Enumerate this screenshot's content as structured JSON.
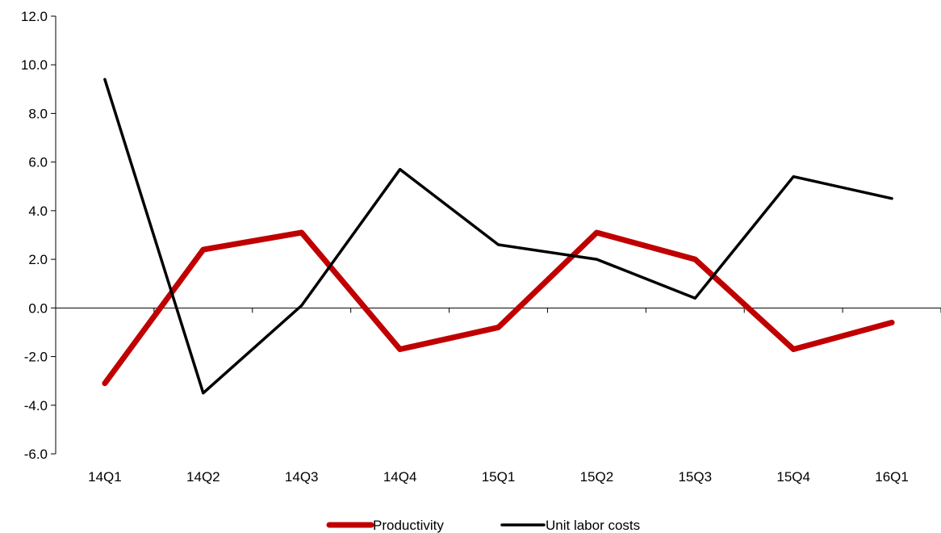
{
  "chart_data": {
    "type": "line",
    "title": "",
    "xlabel": "",
    "ylabel": "",
    "categories": [
      "14Q1",
      "14Q2",
      "14Q3",
      "14Q4",
      "15Q1",
      "15Q2",
      "15Q3",
      "15Q4",
      "16Q1"
    ],
    "ylim": [
      -6.0,
      12.0
    ],
    "y_ticks": [
      "-6.0",
      "-4.0",
      "-2.0",
      "0.0",
      "2.0",
      "4.0",
      "6.0",
      "8.0",
      "10.0",
      "12.0"
    ],
    "y_tick_values": [
      -6,
      -4,
      -2,
      0,
      2,
      4,
      6,
      8,
      10,
      12
    ],
    "grid": false,
    "legend_position": "bottom-center",
    "series": [
      {
        "name": "Productivity",
        "color": "#c00000",
        "values": [
          -3.1,
          2.4,
          3.1,
          -1.7,
          -0.8,
          3.1,
          2.0,
          -1.7,
          -0.6
        ]
      },
      {
        "name": "Unit labor costs",
        "color": "#000000",
        "values": [
          9.4,
          -3.5,
          0.1,
          5.7,
          2.6,
          2.0,
          0.4,
          5.4,
          4.5
        ]
      }
    ]
  }
}
